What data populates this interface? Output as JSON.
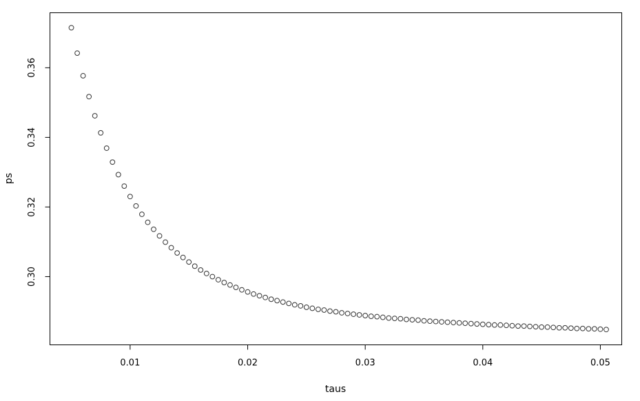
{
  "chart_data": {
    "type": "scatter",
    "title": "",
    "xlabel": "taus",
    "ylabel": "ps",
    "xlim": [
      0.00318,
      0.05182
    ],
    "ylim": [
      0.2804,
      0.3758
    ],
    "xticks": [
      0.01,
      0.02,
      0.03,
      0.04,
      0.05
    ],
    "xtick_labels": [
      "0.01",
      "0.02",
      "0.03",
      "0.04",
      "0.05"
    ],
    "yticks": [
      0.3,
      0.32,
      0.34,
      0.36
    ],
    "ytick_labels": [
      "0.30",
      "0.32",
      "0.34",
      "0.36"
    ],
    "grid": false,
    "legend": "none",
    "marker": "open-circle",
    "x_start": 0.005,
    "x_step": 0.0005,
    "y": [
      0.3715,
      0.3642,
      0.3577,
      0.3517,
      0.3462,
      0.3413,
      0.3369,
      0.3329,
      0.3293,
      0.326,
      0.323,
      0.3203,
      0.3179,
      0.3156,
      0.3136,
      0.3117,
      0.3099,
      0.3083,
      0.3068,
      0.3055,
      0.3042,
      0.303,
      0.3019,
      0.3009,
      0.3,
      0.2991,
      0.2983,
      0.2976,
      0.2969,
      0.2962,
      0.2956,
      0.295,
      0.2945,
      0.294,
      0.2935,
      0.2931,
      0.2927,
      0.2923,
      0.2919,
      0.2916,
      0.2912,
      0.2909,
      0.2906,
      0.2904,
      0.2901,
      0.2899,
      0.2896,
      0.2894,
      0.2892,
      0.289,
      0.2888,
      0.2886,
      0.2885,
      0.2883,
      0.2881,
      0.288,
      0.2879,
      0.2877,
      0.2876,
      0.2875,
      0.2873,
      0.2872,
      0.2871,
      0.287,
      0.2869,
      0.2868,
      0.2867,
      0.2866,
      0.2865,
      0.2864,
      0.2863,
      0.2862,
      0.2861,
      0.2861,
      0.286,
      0.2859,
      0.2858,
      0.2858,
      0.2857,
      0.2856,
      0.2855,
      0.2855,
      0.2854,
      0.2853,
      0.2853,
      0.2852,
      0.2851,
      0.2851,
      0.285,
      0.285,
      0.2849,
      0.2848
    ]
  }
}
